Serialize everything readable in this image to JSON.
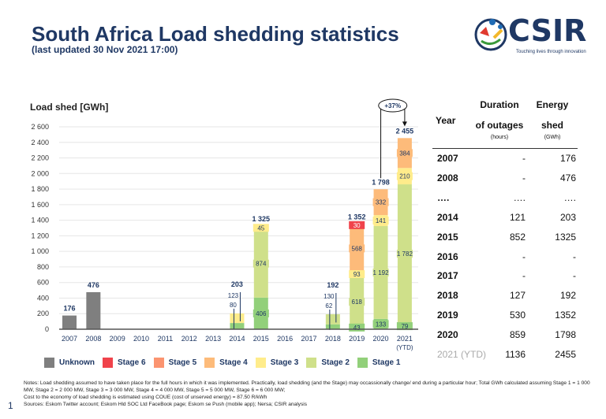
{
  "header": {
    "title": "South Africa Load shedding statistics",
    "subtitle": "(last updated 30 Nov 2021 17:00)"
  },
  "logo": {
    "text": "CSIR",
    "tagline": "Touching lives through innovation"
  },
  "chart_data": {
    "type": "bar",
    "stacked": true,
    "ylabel": "Load shed [GWh]",
    "ylim": [
      0,
      2600
    ],
    "yticks": [
      "0",
      "200",
      "400",
      "600",
      "800",
      "1 000",
      "1 200",
      "1 400",
      "1 600",
      "1 800",
      "2 000",
      "2 200",
      "2 400",
      "2 600"
    ],
    "grid": true,
    "categories": [
      "2007",
      "2008",
      "2009",
      "2010",
      "2011",
      "2012",
      "2013",
      "2014",
      "2015",
      "2016",
      "2017",
      "2018",
      "2019",
      "2020",
      "2021"
    ],
    "category_sublabels": {
      "2021": "(YTD)"
    },
    "series": [
      {
        "name": "Unknown",
        "color": "#7f7f7f",
        "values": [
          176,
          476,
          0,
          0,
          0,
          0,
          0,
          0,
          0,
          0,
          0,
          0,
          0,
          0,
          0
        ]
      },
      {
        "name": "Stage 1",
        "color": "#92d07a",
        "values": [
          0,
          0,
          0,
          0,
          0,
          0,
          0,
          80,
          406,
          0,
          0,
          62,
          43,
          133,
          79
        ]
      },
      {
        "name": "Stage 2",
        "color": "#cfe08a",
        "values": [
          0,
          0,
          0,
          0,
          0,
          0,
          0,
          0,
          874,
          0,
          0,
          130,
          618,
          1192,
          1782
        ]
      },
      {
        "name": "Stage 3",
        "color": "#ffec8b",
        "values": [
          0,
          0,
          0,
          0,
          0,
          0,
          0,
          123,
          45,
          0,
          0,
          0,
          93,
          141,
          210
        ]
      },
      {
        "name": "Stage 4",
        "color": "#fdbb7a",
        "values": [
          0,
          0,
          0,
          0,
          0,
          0,
          0,
          0,
          0,
          0,
          0,
          0,
          568,
          332,
          384
        ]
      },
      {
        "name": "Stage 5",
        "color": "#fb9470",
        "values": [
          0,
          0,
          0,
          0,
          0,
          0,
          0,
          0,
          0,
          0,
          0,
          0,
          0,
          0,
          0
        ]
      },
      {
        "name": "Stage 6",
        "color": "#f0434b",
        "values": [
          0,
          0,
          0,
          0,
          0,
          0,
          0,
          0,
          0,
          0,
          0,
          0,
          30,
          0,
          0
        ]
      }
    ],
    "totals": {
      "2007": "176",
      "2008": "476",
      "2014": "203",
      "2015": "1 325",
      "2018": "192",
      "2019": "1 352",
      "2020": "1 798",
      "2021": "2 455"
    },
    "annotation": "+37%",
    "legend_order": [
      "Unknown",
      "Stage 6",
      "Stage 5",
      "Stage 4",
      "Stage 3",
      "Stage 2",
      "Stage 1"
    ],
    "legend_placement": "bottom"
  },
  "table": {
    "headers": {
      "year": "Year",
      "duration": [
        "Duration",
        "of outages"
      ],
      "duration_unit": "(hours)",
      "energy": [
        "Energy",
        "shed"
      ],
      "energy_unit": "(GWh)"
    },
    "rows": [
      {
        "year": "2007",
        "duration": "-",
        "energy": "176"
      },
      {
        "year": "2008",
        "duration": "-",
        "energy": "476"
      },
      {
        "year": "….",
        "duration": "….",
        "energy": "…."
      },
      {
        "year": "2014",
        "duration": "121",
        "energy": "203"
      },
      {
        "year": "2015",
        "duration": "852",
        "energy": "1325"
      },
      {
        "year": "2016",
        "duration": "-",
        "energy": "-"
      },
      {
        "year": "2017",
        "duration": "-",
        "energy": "-"
      },
      {
        "year": "2018",
        "duration": "127",
        "energy": "192"
      },
      {
        "year": "2019",
        "duration": "530",
        "energy": "1352"
      },
      {
        "year": "2020",
        "duration": "859",
        "energy": "1798"
      },
      {
        "year": "2021 (YTD)",
        "duration": "1136",
        "energy": "2455"
      }
    ]
  },
  "notes": [
    "Notes: Load shedding assumed to have taken place for the full hours in which it was implemented.  Practically, load shedding (and the Stage) may occassionally change/ end during a particular hour; Total GWh calculated assuming Stage 1 = 1 000 MW, Stage 2 = 2 000 MW, Stage 3 = 3 000 MW, Stage 4 = 4 000 MW, Stage 5 = 5 000 MW, Stage 6 = 6 000 MW;",
    "Cost to the economy of load shedding is estimated using COUE (cost of unserved energy) = 87.50 R/kWh",
    "Sources: Eskom Twitter account; Eskom Hld SOC Ltd FaceBook page; Eskom se Push (mobile app); Nersa; CSIR analysis"
  ],
  "page_number": "1"
}
